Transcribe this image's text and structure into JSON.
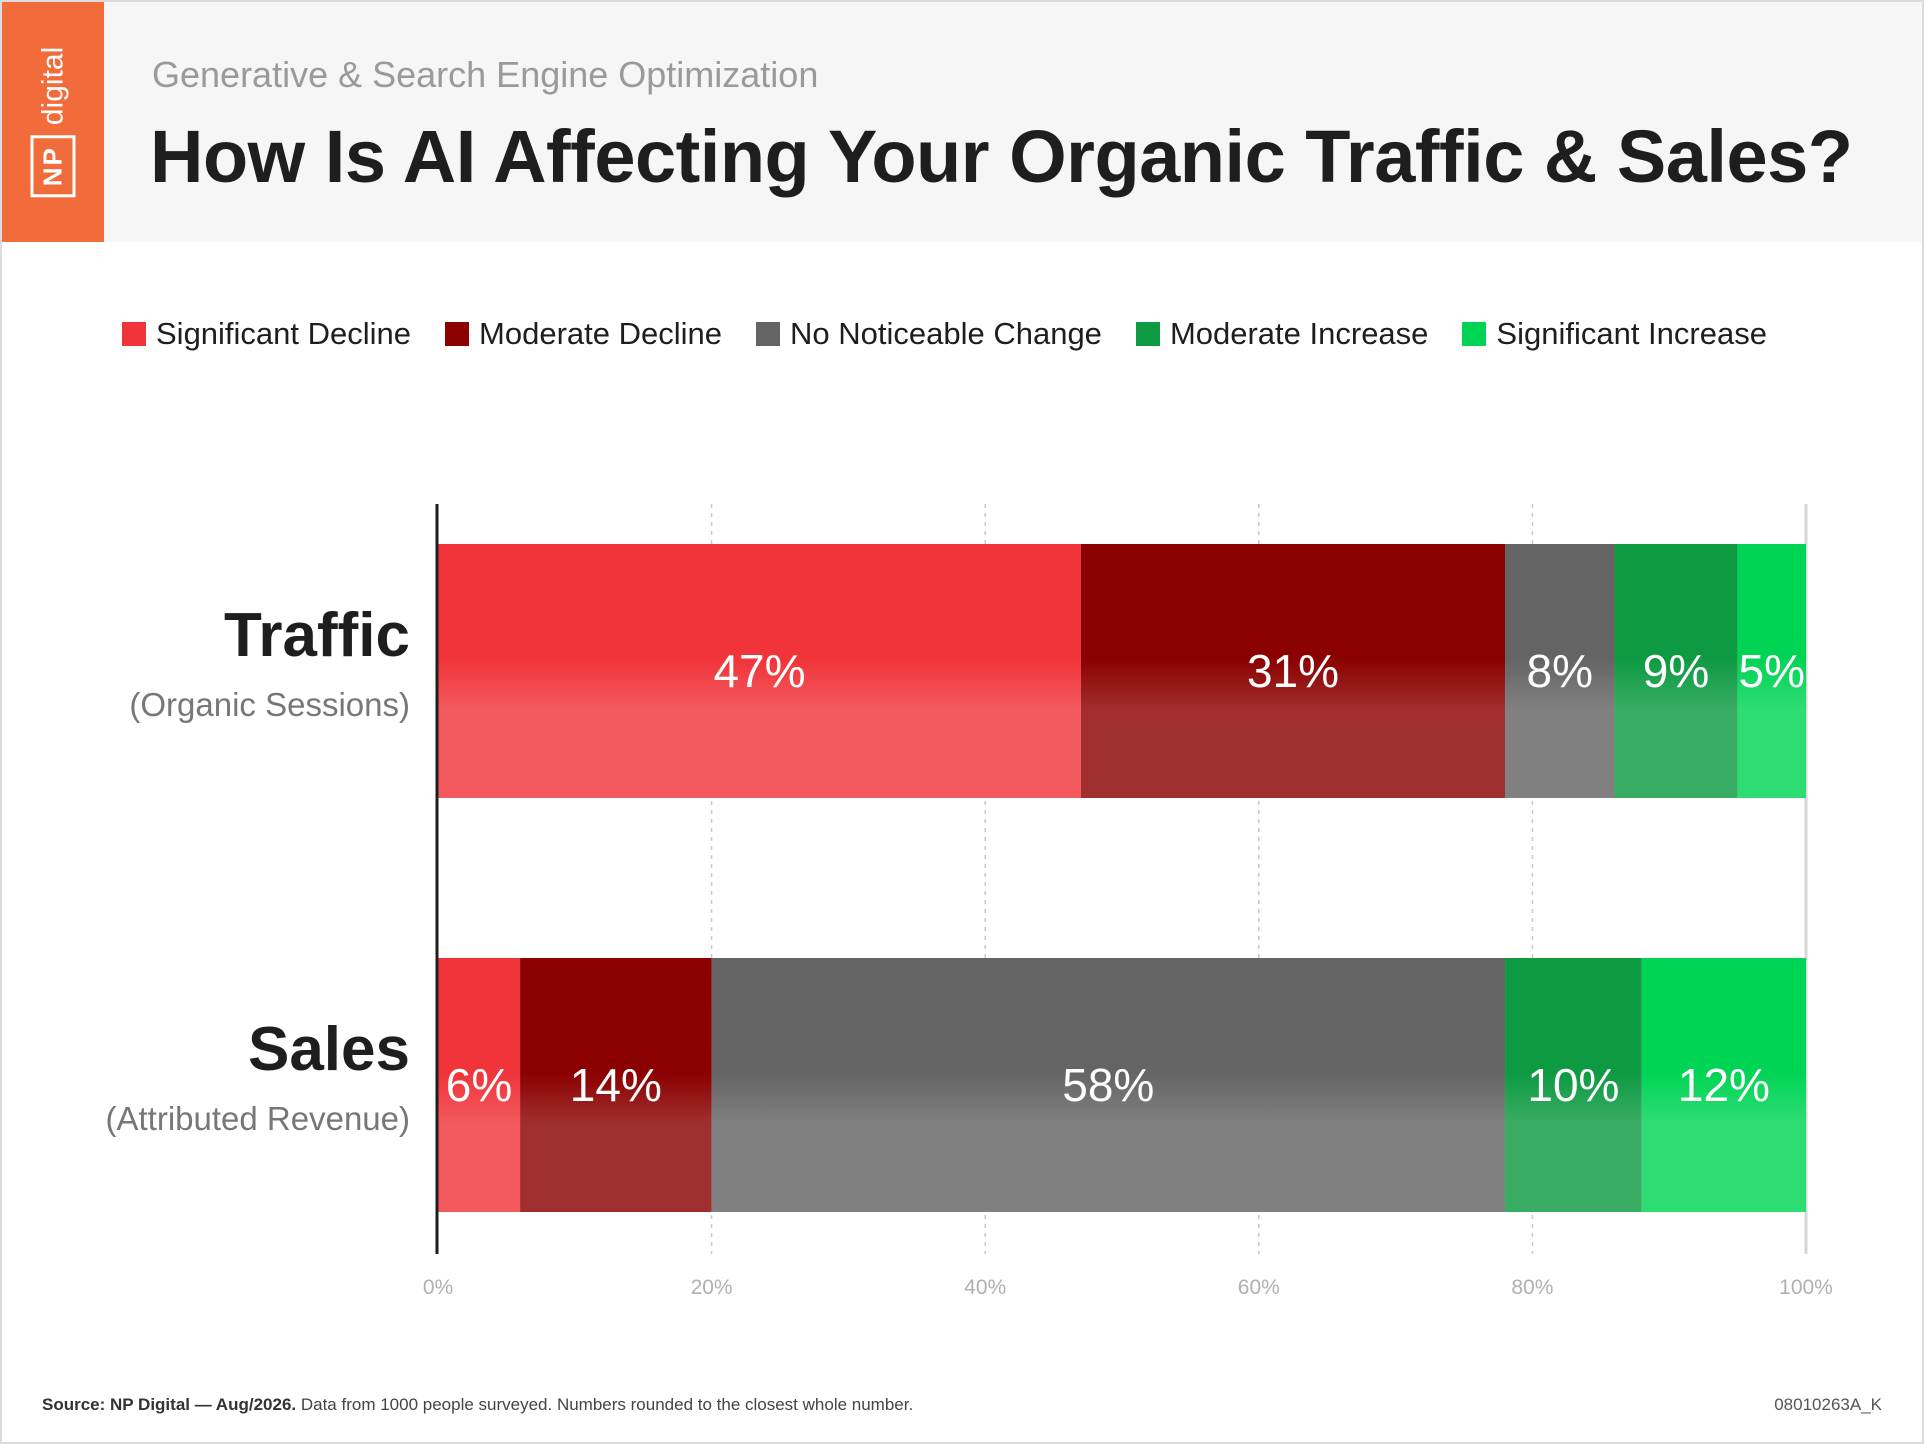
{
  "header": {
    "logo_np": "NP",
    "logo_word": "digital",
    "subtitle": "Generative & Search Engine Optimization",
    "title": "How Is AI Affecting Your Organic Traffic & Sales?"
  },
  "colors": {
    "significant_decline": "#f0343a",
    "moderate_decline": "#8b0000",
    "no_change": "#646464",
    "moderate_increase": "#0d9a42",
    "significant_increase": "#00d455"
  },
  "chart_data": {
    "type": "bar",
    "orientation": "horizontal",
    "stacked": true,
    "title": "How Is AI Affecting Your Organic Traffic & Sales?",
    "categories": [
      "Traffic",
      "Sales"
    ],
    "category_sublabels": [
      "(Organic Sessions)",
      "(Attributed Revenue)"
    ],
    "series": [
      {
        "name": "Significant Decline",
        "values": [
          47,
          6
        ],
        "color": "#f0343a"
      },
      {
        "name": "Moderate Decline",
        "values": [
          31,
          14
        ],
        "color": "#8b0000"
      },
      {
        "name": "No Noticeable Change",
        "values": [
          8,
          58
        ],
        "color": "#646464"
      },
      {
        "name": "Moderate Increase",
        "values": [
          9,
          10
        ],
        "color": "#0d9a42"
      },
      {
        "name": "Significant Increase",
        "values": [
          5,
          12
        ],
        "color": "#00d455"
      }
    ],
    "data_labels": [
      [
        "47%",
        "31%",
        "8%",
        "9%",
        "5%"
      ],
      [
        "6%",
        "14%",
        "58%",
        "10%",
        "12%"
      ]
    ],
    "xlim": [
      0,
      100
    ],
    "xticks": [
      0,
      20,
      40,
      60,
      80,
      100
    ],
    "xtick_labels": [
      "0%",
      "20%",
      "40%",
      "60%",
      "80%",
      "100%"
    ],
    "grid": "vertical dashed",
    "legend": "top"
  },
  "footer": {
    "source_bold": "Source: NP Digital — Aug/2026.",
    "source_rest": " Data from 1000 people surveyed. Numbers rounded to the closest whole number.",
    "code": "08010263A_K"
  }
}
